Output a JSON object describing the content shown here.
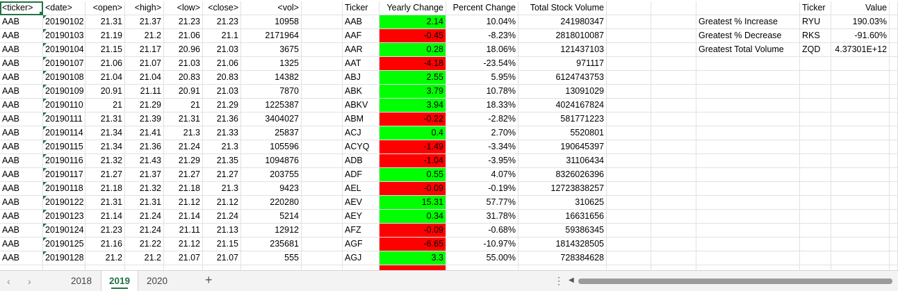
{
  "columns": [
    {
      "key": "ticker",
      "header": "<ticker>",
      "width": 62,
      "align": "l"
    },
    {
      "key": "date",
      "header": "<date>",
      "width": 61,
      "align": "l"
    },
    {
      "key": "open",
      "header": "<open>",
      "width": 57,
      "align": "r"
    },
    {
      "key": "high",
      "header": "<high>",
      "width": 56,
      "align": "r"
    },
    {
      "key": "low",
      "header": "<low>",
      "width": 56,
      "align": "r"
    },
    {
      "key": "close",
      "header": "<close>",
      "width": 55,
      "align": "r"
    },
    {
      "key": "vol",
      "header": "<vol>",
      "width": 87,
      "align": "r"
    },
    {
      "key": "blank1",
      "header": "",
      "width": 59,
      "align": "l"
    },
    {
      "key": "s_ticker",
      "header": "Ticker",
      "width": 53,
      "align": "l"
    },
    {
      "key": "yearly",
      "header": "Yearly Change",
      "width": 96,
      "align": "r"
    },
    {
      "key": "percent",
      "header": "Percent Change",
      "width": 104,
      "align": "r"
    },
    {
      "key": "total",
      "header": "Total Stock Volume",
      "width": 127,
      "align": "r"
    },
    {
      "key": "blank2",
      "header": "",
      "width": 64,
      "align": "l"
    },
    {
      "key": "blank3",
      "header": "",
      "width": 65,
      "align": "l"
    },
    {
      "key": "label",
      "header": "",
      "width": 149,
      "align": "l"
    },
    {
      "key": "r_ticker",
      "header": "Ticker",
      "width": 45,
      "align": "l"
    },
    {
      "key": "value",
      "header": "Value",
      "width": 84,
      "align": "r"
    },
    {
      "key": "blank4",
      "header": "",
      "width": 12,
      "align": "l"
    }
  ],
  "raw_rows": [
    [
      "AAB",
      "20190102",
      "21.31",
      "21.37",
      "21.23",
      "21.23",
      "10958"
    ],
    [
      "AAB",
      "20190103",
      "21.19",
      "21.2",
      "21.06",
      "21.1",
      "2171964"
    ],
    [
      "AAB",
      "20190104",
      "21.15",
      "21.17",
      "20.96",
      "21.03",
      "3675"
    ],
    [
      "AAB",
      "20190107",
      "21.06",
      "21.07",
      "21.03",
      "21.06",
      "1325"
    ],
    [
      "AAB",
      "20190108",
      "21.04",
      "21.04",
      "20.83",
      "20.83",
      "14382"
    ],
    [
      "AAB",
      "20190109",
      "20.91",
      "21.11",
      "20.91",
      "21.03",
      "7870"
    ],
    [
      "AAB",
      "20190110",
      "21",
      "21.29",
      "21",
      "21.29",
      "1225387"
    ],
    [
      "AAB",
      "20190111",
      "21.31",
      "21.39",
      "21.31",
      "21.36",
      "3404027"
    ],
    [
      "AAB",
      "20190114",
      "21.34",
      "21.41",
      "21.3",
      "21.33",
      "25837"
    ],
    [
      "AAB",
      "20190115",
      "21.34",
      "21.36",
      "21.24",
      "21.3",
      "105596"
    ],
    [
      "AAB",
      "20190116",
      "21.32",
      "21.43",
      "21.29",
      "21.35",
      "1094876"
    ],
    [
      "AAB",
      "20190117",
      "21.27",
      "21.37",
      "21.27",
      "21.27",
      "203755"
    ],
    [
      "AAB",
      "20190118",
      "21.18",
      "21.32",
      "21.18",
      "21.3",
      "9423"
    ],
    [
      "AAB",
      "20190122",
      "21.31",
      "21.31",
      "21.12",
      "21.12",
      "220280"
    ],
    [
      "AAB",
      "20190123",
      "21.14",
      "21.24",
      "21.14",
      "21.24",
      "5214"
    ],
    [
      "AAB",
      "20190124",
      "21.23",
      "21.24",
      "21.11",
      "21.13",
      "12912"
    ],
    [
      "AAB",
      "20190125",
      "21.16",
      "21.22",
      "21.12",
      "21.15",
      "235681"
    ],
    [
      "AAB",
      "20190128",
      "21.2",
      "21.2",
      "21.07",
      "21.07",
      "555"
    ],
    [
      "",
      "",
      "",
      "",
      "",
      "",
      ""
    ]
  ],
  "summary_rows": [
    [
      "AAB",
      "2.14",
      "10.04%",
      "241980347"
    ],
    [
      "AAF",
      "-0.45",
      "-8.23%",
      "2818010087"
    ],
    [
      "AAR",
      "0.28",
      "18.06%",
      "121437103"
    ],
    [
      "AAT",
      "-4.18",
      "-23.54%",
      "971117"
    ],
    [
      "ABJ",
      "2.55",
      "5.95%",
      "6124743753"
    ],
    [
      "ABK",
      "3.79",
      "10.78%",
      "13091029"
    ],
    [
      "ABKV",
      "3.94",
      "18.33%",
      "4024167824"
    ],
    [
      "ABM",
      "-0.22",
      "-2.82%",
      "581771223"
    ],
    [
      "ACJ",
      "0.4",
      "2.70%",
      "5520801"
    ],
    [
      "ACYQ",
      "-1.49",
      "-3.34%",
      "190645397"
    ],
    [
      "ADB",
      "-1.04",
      "-3.95%",
      "31106434"
    ],
    [
      "ADF",
      "0.55",
      "4.07%",
      "8326026396"
    ],
    [
      "AEL",
      "-0.09",
      "-0.19%",
      "12723838257"
    ],
    [
      "AEV",
      "15.31",
      "57.77%",
      "310625"
    ],
    [
      "AEY",
      "0.34",
      "31.78%",
      "16631656"
    ],
    [
      "AFZ",
      "-0.09",
      "-0.68%",
      "59386345"
    ],
    [
      "AGF",
      "-6.65",
      "-10.97%",
      "1814328505"
    ],
    [
      "AGJ",
      "3.3",
      "55.00%",
      "728384628"
    ],
    [
      "",
      "",
      "",
      ""
    ]
  ],
  "greatest": [
    [
      "Greatest % Increase",
      "RYU",
      "190.03%"
    ],
    [
      "Greatest % Decrease",
      "RKS",
      "-91.60%"
    ],
    [
      "Greatest Total Volume",
      "ZQD",
      "4.37301E+12"
    ]
  ],
  "colors": {
    "positive": "#00ff00",
    "negative": "#ff0000",
    "accent": "#217346"
  },
  "sheet_tabs": [
    {
      "label": "2018",
      "active": false
    },
    {
      "label": "2019",
      "active": true
    },
    {
      "label": "2020",
      "active": false
    }
  ],
  "icons": {
    "prev_sheet": "‹",
    "next_sheet": "›",
    "add_sheet": "+",
    "options": "⋮",
    "scroll_left": "◀",
    "scroll_right": "▶"
  }
}
